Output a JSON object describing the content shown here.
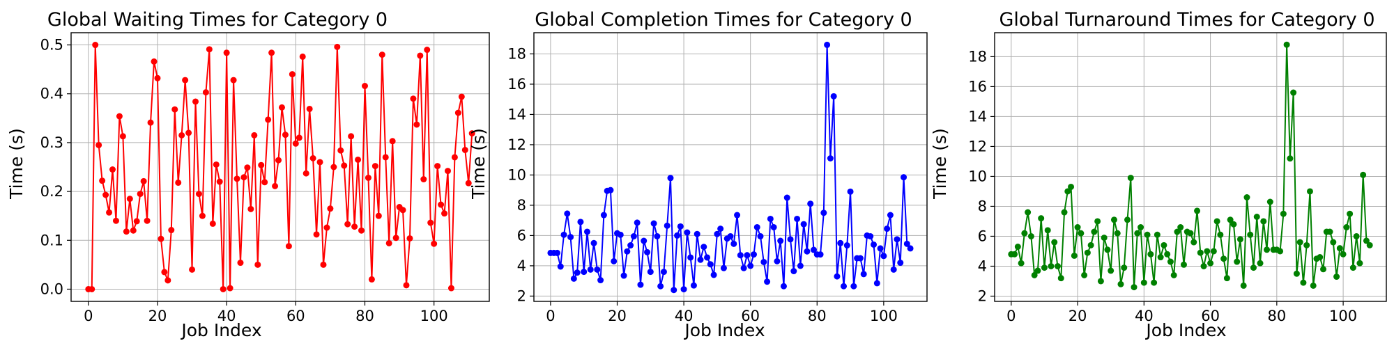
{
  "chart_data": [
    {
      "type": "line",
      "title": "Global Waiting Times for Category 0",
      "xlabel": "Job Index",
      "ylabel": "Time (s)",
      "xlim": [
        -5,
        116
      ],
      "ylim": [
        -0.025,
        0.525
      ],
      "xticks": [
        0,
        20,
        40,
        60,
        80,
        100
      ],
      "yticks": [
        0.0,
        0.1,
        0.2,
        0.3,
        0.4,
        0.5
      ],
      "tick_decimals": 1,
      "grid": true,
      "color": "#ff0000",
      "x_start": 0,
      "series": [
        {
          "values": [
            0.0,
            0.0,
            0.5,
            0.295,
            0.222,
            0.193,
            0.157,
            0.245,
            0.14,
            0.354,
            0.313,
            0.118,
            0.185,
            0.12,
            0.139,
            0.195,
            0.221,
            0.14,
            0.341,
            0.466,
            0.432,
            0.103,
            0.035,
            0.018,
            0.121,
            0.368,
            0.218,
            0.315,
            0.428,
            0.32,
            0.04,
            0.384,
            0.195,
            0.15,
            0.403,
            0.491,
            0.134,
            0.255,
            0.22,
            0.0,
            0.484,
            0.002,
            0.428,
            0.226,
            0.054,
            0.229,
            0.249,
            0.164,
            0.315,
            0.05,
            0.254,
            0.219,
            0.347,
            0.484,
            0.211,
            0.264,
            0.372,
            0.316,
            0.088,
            0.44,
            0.298,
            0.31,
            0.476,
            0.237,
            0.369,
            0.268,
            0.112,
            0.26,
            0.05,
            0.126,
            0.165,
            0.25,
            0.496,
            0.284,
            0.253,
            0.133,
            0.313,
            0.128,
            0.265,
            0.12,
            0.416,
            0.228,
            0.02,
            0.252,
            0.15,
            0.48,
            0.27,
            0.094,
            0.303,
            0.105,
            0.168,
            0.162,
            0.008,
            0.104,
            0.39,
            0.337,
            0.478,
            0.225,
            0.49,
            0.136,
            0.093,
            0.252,
            0.173,
            0.155,
            0.242,
            0.002,
            0.27,
            0.361,
            0.394,
            0.285,
            0.217,
            0.319
          ]
        }
      ]
    },
    {
      "type": "line",
      "title": "Global Completion Times for Category 0",
      "xlabel": "Job Index",
      "ylabel": "Time (s)",
      "xlim": [
        -5,
        113
      ],
      "ylim": [
        1.65,
        19.4
      ],
      "xticks": [
        0,
        20,
        40,
        60,
        80,
        100
      ],
      "yticks": [
        2,
        4,
        6,
        8,
        10,
        12,
        14,
        16,
        18
      ],
      "tick_decimals": 0,
      "grid": true,
      "color": "#0000ff",
      "x_start": 0,
      "series": [
        {
          "values": [
            4.85,
            4.85,
            4.85,
            3.95,
            6.05,
            7.45,
            5.9,
            3.15,
            3.55,
            6.9,
            3.6,
            6.25,
            3.75,
            5.5,
            3.75,
            3.05,
            7.35,
            8.95,
            9.0,
            4.3,
            6.15,
            6.05,
            3.35,
            4.95,
            5.35,
            5.95,
            6.85,
            2.75,
            5.65,
            4.9,
            3.6,
            6.8,
            5.95,
            2.65,
            3.6,
            6.65,
            9.8,
            2.4,
            6.0,
            6.6,
            2.45,
            6.2,
            4.55,
            2.7,
            6.1,
            4.4,
            5.25,
            4.55,
            4.1,
            3.4,
            6.1,
            6.45,
            3.85,
            5.8,
            5.95,
            5.45,
            7.35,
            4.7,
            3.85,
            4.7,
            4.0,
            4.75,
            6.55,
            5.95,
            4.25,
            2.95,
            7.1,
            6.55,
            4.3,
            5.65,
            2.65,
            8.5,
            5.75,
            3.65,
            7.1,
            4.0,
            6.75,
            4.95,
            8.1,
            5.05,
            4.75,
            4.75,
            7.5,
            18.6,
            11.1,
            15.2,
            3.3,
            5.5,
            2.65,
            5.35,
            8.9,
            2.65,
            4.5,
            4.5,
            3.45,
            6.0,
            5.95,
            5.4,
            2.85,
            5.15,
            4.65,
            6.45,
            7.35,
            3.75,
            5.75,
            4.2,
            9.85,
            5.45,
            5.15
          ]
        }
      ]
    },
    {
      "type": "line",
      "title": "Global Turnaround Times for Category 0",
      "xlabel": "Job Index",
      "ylabel": "Time (s)",
      "xlim": [
        -5,
        113
      ],
      "ylim": [
        1.65,
        19.6
      ],
      "xticks": [
        0,
        20,
        40,
        60,
        80,
        100
      ],
      "yticks": [
        2,
        4,
        6,
        8,
        10,
        12,
        14,
        16,
        18
      ],
      "tick_decimals": 0,
      "grid": true,
      "color": "#008000",
      "x_start": 0,
      "series": [
        {
          "values": [
            4.8,
            4.8,
            5.3,
            4.2,
            6.2,
            7.6,
            6.0,
            3.4,
            3.7,
            7.2,
            3.9,
            6.4,
            4.0,
            5.6,
            4.0,
            3.2,
            7.6,
            9.0,
            9.3,
            4.7,
            6.6,
            6.2,
            3.4,
            4.9,
            5.4,
            6.3,
            7.0,
            3.0,
            5.9,
            5.1,
            3.7,
            7.1,
            6.2,
            2.8,
            3.9,
            7.1,
            9.9,
            2.6,
            6.2,
            6.6,
            2.9,
            6.1,
            4.8,
            2.9,
            6.1,
            4.6,
            5.4,
            4.8,
            4.3,
            3.4,
            6.3,
            6.6,
            4.1,
            6.3,
            6.2,
            5.6,
            7.7,
            4.9,
            4.0,
            5.0,
            4.2,
            5.0,
            7.0,
            6.1,
            4.5,
            3.2,
            7.1,
            6.8,
            4.3,
            5.8,
            2.7,
            8.6,
            6.1,
            3.9,
            7.3,
            4.2,
            7.0,
            5.1,
            8.3,
            5.1,
            5.1,
            5.0,
            7.5,
            18.8,
            11.2,
            15.6,
            3.5,
            5.6,
            2.9,
            5.4,
            9.0,
            2.7,
            4.5,
            4.6,
            3.8,
            6.3,
            6.3,
            5.6,
            3.3,
            5.2,
            4.8,
            6.6,
            7.5,
            3.9,
            6.0,
            4.2,
            10.1,
            5.7,
            5.4
          ]
        }
      ]
    }
  ]
}
